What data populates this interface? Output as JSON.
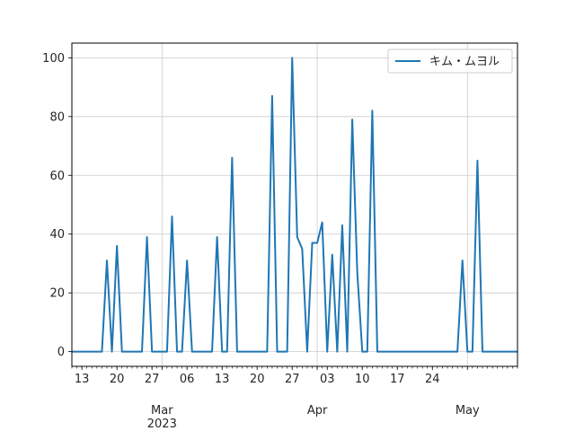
{
  "chart_data": {
    "type": "line",
    "title": "",
    "xlabel": "",
    "ylabel": "",
    "xlim": [
      "2023-02-11",
      "2023-05-11"
    ],
    "ylim": [
      -5,
      105
    ],
    "grid": true,
    "legend_position": "top-right",
    "y_ticks": [
      0,
      20,
      40,
      60,
      80,
      100
    ],
    "x_ticks": [
      {
        "date": "2023-02-13",
        "label": "13"
      },
      {
        "date": "2023-02-20",
        "label": "20"
      },
      {
        "date": "2023-02-27",
        "label": "27"
      },
      {
        "date": "2023-03-01",
        "label": "Mar\n2023"
      },
      {
        "date": "2023-03-06",
        "label": "06"
      },
      {
        "date": "2023-03-13",
        "label": "13"
      },
      {
        "date": "2023-03-20",
        "label": "20"
      },
      {
        "date": "2023-03-27",
        "label": "27"
      },
      {
        "date": "2023-04-01",
        "label": "Apr"
      },
      {
        "date": "2023-04-03",
        "label": "03"
      },
      {
        "date": "2023-04-10",
        "label": "10"
      },
      {
        "date": "2023-04-17",
        "label": "17"
      },
      {
        "date": "2023-04-24",
        "label": "24"
      },
      {
        "date": "2023-05-01",
        "label": "May"
      }
    ],
    "grid_dates": [
      "2023-03-01",
      "2023-04-01",
      "2023-05-01"
    ],
    "series": [
      {
        "name": "キム・ムヨル",
        "color": "#1f77b4",
        "x": [
          "2023-02-11",
          "2023-02-12",
          "2023-02-13",
          "2023-02-14",
          "2023-02-15",
          "2023-02-16",
          "2023-02-17",
          "2023-02-18",
          "2023-02-19",
          "2023-02-20",
          "2023-02-21",
          "2023-02-22",
          "2023-02-23",
          "2023-02-24",
          "2023-02-25",
          "2023-02-26",
          "2023-02-27",
          "2023-02-28",
          "2023-03-01",
          "2023-03-02",
          "2023-03-03",
          "2023-03-04",
          "2023-03-05",
          "2023-03-06",
          "2023-03-07",
          "2023-03-08",
          "2023-03-09",
          "2023-03-10",
          "2023-03-11",
          "2023-03-12",
          "2023-03-13",
          "2023-03-14",
          "2023-03-15",
          "2023-03-16",
          "2023-03-17",
          "2023-03-18",
          "2023-03-19",
          "2023-03-20",
          "2023-03-21",
          "2023-03-22",
          "2023-03-23",
          "2023-03-24",
          "2023-03-25",
          "2023-03-26",
          "2023-03-27",
          "2023-03-28",
          "2023-03-29",
          "2023-03-30",
          "2023-03-31",
          "2023-04-01",
          "2023-04-02",
          "2023-04-03",
          "2023-04-04",
          "2023-04-05",
          "2023-04-06",
          "2023-04-07",
          "2023-04-08",
          "2023-04-09",
          "2023-04-10",
          "2023-04-11",
          "2023-04-12",
          "2023-04-13",
          "2023-04-14",
          "2023-04-15",
          "2023-04-16",
          "2023-04-17",
          "2023-04-18",
          "2023-04-19",
          "2023-04-20",
          "2023-04-21",
          "2023-04-22",
          "2023-04-23",
          "2023-04-24",
          "2023-04-25",
          "2023-04-26",
          "2023-04-27",
          "2023-04-28",
          "2023-04-29",
          "2023-04-30",
          "2023-05-01",
          "2023-05-02",
          "2023-05-03",
          "2023-05-04",
          "2023-05-05",
          "2023-05-06",
          "2023-05-07",
          "2023-05-08",
          "2023-05-09",
          "2023-05-10",
          "2023-05-11"
        ],
        "values": [
          0,
          0,
          0,
          0,
          0,
          0,
          0,
          31,
          0,
          36,
          0,
          0,
          0,
          0,
          0,
          39,
          0,
          0,
          0,
          0,
          46,
          0,
          0,
          31,
          0,
          0,
          0,
          0,
          0,
          39,
          0,
          0,
          66,
          0,
          0,
          0,
          0,
          0,
          0,
          0,
          87,
          0,
          0,
          0,
          100,
          39,
          35,
          0,
          37,
          37,
          44,
          0,
          33,
          0,
          43,
          0,
          79,
          27,
          0,
          0,
          82,
          0,
          0,
          0,
          0,
          0,
          0,
          0,
          0,
          0,
          0,
          0,
          0,
          0,
          0,
          0,
          0,
          0,
          31,
          0,
          0,
          65,
          0,
          0,
          0,
          0,
          0,
          0,
          0,
          0
        ]
      }
    ]
  }
}
